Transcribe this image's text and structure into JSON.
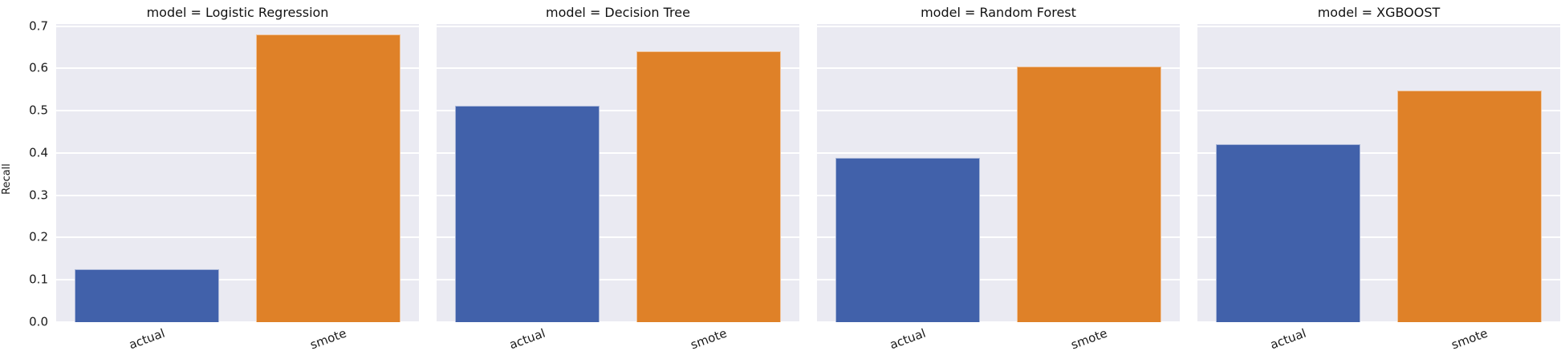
{
  "chart_data": {
    "type": "bar",
    "ylabel": "Recall",
    "xlabel": "",
    "categories": [
      "actual",
      "smote"
    ],
    "facet_variable": "model",
    "facets": [
      {
        "title": "model = Logistic Regression",
        "values": [
          0.126,
          0.68
        ]
      },
      {
        "title": "model = Decision Tree",
        "values": [
          0.512,
          0.641
        ]
      },
      {
        "title": "model = Random Forest",
        "values": [
          0.389,
          0.605
        ]
      },
      {
        "title": "model = XGBOOST",
        "values": [
          0.42,
          0.547
        ]
      }
    ],
    "yticks": [
      0.0,
      0.1,
      0.2,
      0.3,
      0.4,
      0.5,
      0.6,
      0.7
    ],
    "ylim": [
      0,
      0.705
    ],
    "grid": "horizontal-white-on-grey",
    "legend_position": "none",
    "colors": {
      "actual": "#4161aa",
      "smote": "#df8128",
      "plot_background": "#eaeaf2",
      "gridline": "#ffffff",
      "text": "#1a1a1a"
    }
  }
}
